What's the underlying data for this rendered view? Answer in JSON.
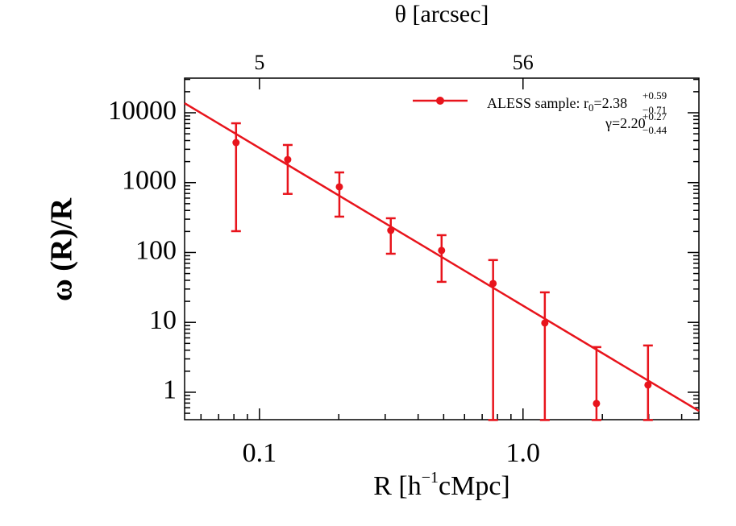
{
  "chart_data": {
    "type": "scatter",
    "xlabel": {
      "main": "R [h",
      "sup": "−1",
      "rest": "cMpc]"
    },
    "ylabel": "ω (R)/R",
    "x2label": "θ  [arcsec]",
    "x": [
      0.0815,
      0.128,
      0.201,
      0.315,
      0.491,
      0.77,
      1.21,
      1.9,
      2.98
    ],
    "series": [
      {
        "name": {
          "prefix": "ALESS sample: r",
          "sub": "0",
          "value": "=2.38",
          "plus": "+0.59",
          "minus": "−0.71",
          "line2": "γ=2.20",
          "plus2": "+0.27",
          "minus2": "−0.44"
        },
        "color": "#e8141c",
        "values": [
          3740,
          2140,
          870,
          207,
          107,
          36,
          9.8,
          0.69,
          1.27
        ],
        "lower": [
          202,
          690,
          326,
          96,
          38,
          0.4,
          0.4,
          0.4,
          0.4
        ],
        "upper": [
          7070,
          3460,
          1400,
          309,
          177,
          78,
          26.9,
          4.43,
          4.67
        ]
      }
    ],
    "fit": {
      "x": [
        0.052,
        4.65
      ],
      "values": [
        13700,
        0.54
      ]
    },
    "xlim": [
      0.052,
      4.65
    ],
    "ylim": [
      0.405,
      31300
    ],
    "xscale": "log",
    "yscale": "log",
    "xticks": [
      0.1,
      {
        "value": 1,
        "label": "1.0"
      }
    ],
    "x2ticks": [
      {
        "value": 0.1,
        "label": "5"
      },
      {
        "value": 1,
        "label": "56"
      }
    ],
    "yticks": [
      1,
      10,
      100,
      1000,
      10000
    ]
  }
}
